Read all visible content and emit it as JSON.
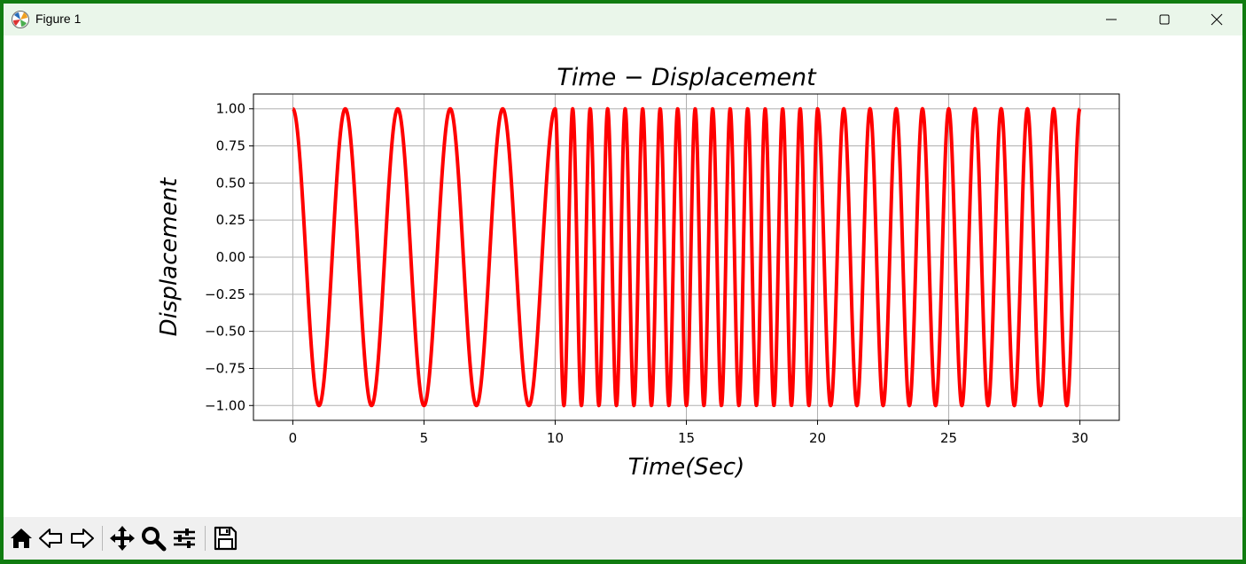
{
  "window": {
    "title": "Figure 1",
    "controls": [
      "minimize",
      "maximize",
      "close"
    ]
  },
  "toolbar": {
    "buttons": [
      {
        "name": "home-button",
        "icon": "home-icon"
      },
      {
        "name": "back-button",
        "icon": "arrow-left-icon"
      },
      {
        "name": "forward-button",
        "icon": "arrow-right-icon"
      },
      {
        "name": "pan-button",
        "icon": "move-icon"
      },
      {
        "name": "zoom-button",
        "icon": "magnifier-icon"
      },
      {
        "name": "configure-subplots-button",
        "icon": "sliders-icon"
      },
      {
        "name": "save-button",
        "icon": "floppy-disk-icon"
      }
    ]
  },
  "chart_data": {
    "type": "line",
    "title": "Time − Displacement",
    "xlabel": "Time(Sec)",
    "ylabel": "Displacement",
    "xlim": [
      -1.5,
      31.5
    ],
    "ylim": [
      -1.1,
      1.1
    ],
    "xticks": [
      0,
      5,
      10,
      15,
      20,
      25,
      30
    ],
    "yticks": [
      1.0,
      0.75,
      0.5,
      0.25,
      0.0,
      -0.25,
      -0.5,
      -0.75,
      -1.0
    ],
    "xtick_labels": [
      "0",
      "5",
      "10",
      "15",
      "20",
      "25",
      "30"
    ],
    "ytick_labels": [
      "1.00",
      "0.75",
      "0.50",
      "0.25",
      "0.00",
      "−0.25",
      "−0.50",
      "−0.75",
      "−1.00"
    ],
    "grid": true,
    "series": [
      {
        "color": "#ff0000",
        "segments": [
          {
            "x_start": 0,
            "x_end": 10,
            "function": "cos",
            "period": 2.0
          },
          {
            "x_start": 10,
            "x_end": 20,
            "function": "cos",
            "period": 0.667
          },
          {
            "x_start": 20,
            "x_end": 30,
            "function": "cos",
            "period": 1.0
          }
        ]
      }
    ]
  }
}
